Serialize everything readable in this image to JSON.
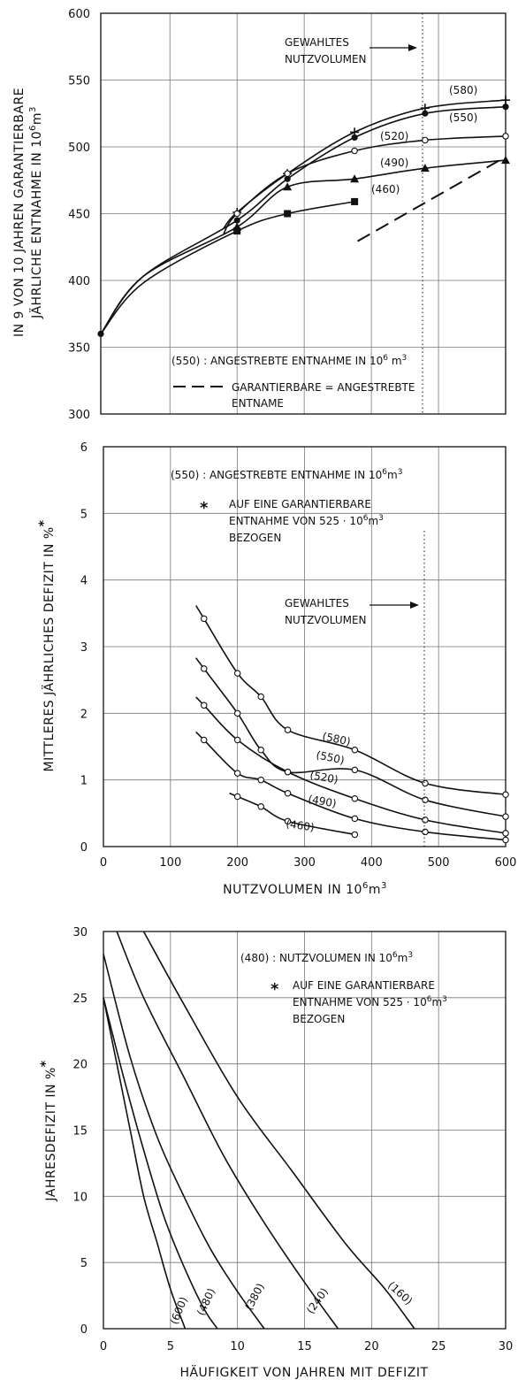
{
  "chart_data": [
    {
      "type": "line",
      "ylabel_line1": "IN 9 VON 10 JAHREN GARANTIERBARE",
      "ylabel_line2": "JÄHRLICHE ENTNAHME IN 10",
      "ylabel_sup": "6",
      "ylabel_unit": "m",
      "ylabel_unit_sup": "3",
      "xlim": [
        -3,
        600
      ],
      "ylim": [
        300,
        600
      ],
      "yticks": [
        300,
        350,
        400,
        450,
        500,
        550,
        600
      ],
      "xgrid": [
        100,
        200,
        300,
        400,
        500
      ],
      "grid": true,
      "annotation": {
        "line1": "GEWAHLTES",
        "line2": "NUTZVOLUMEN",
        "x": 480
      },
      "legend_text_1": "(550) : ANGESTREBTE ENTNAHME IN 10",
      "legend_text_1_sup": "6",
      "legend_text_1_unit": " m",
      "legend_text_1_unit_sup": "3",
      "legend_text_2_line1": "GARANTIERBARE = ANGESTREBTE",
      "legend_text_2_line2": "ENTNAME",
      "start_point": {
        "x": -3,
        "y": 360
      },
      "series": [
        {
          "name": "(580)",
          "marker": "plus",
          "x": [
            200,
            275,
            375,
            480,
            600
          ],
          "y": [
            451,
            480,
            511,
            529,
            535
          ]
        },
        {
          "name": "(550)",
          "marker": "dot",
          "x": [
            200,
            275,
            375,
            480,
            600
          ],
          "y": [
            445,
            476,
            507,
            525,
            530
          ]
        },
        {
          "name": "(520)",
          "marker": "circle",
          "x": [
            200,
            275,
            375,
            480,
            600
          ],
          "y": [
            450,
            480,
            497,
            505,
            508
          ]
        },
        {
          "name": "(490)",
          "marker": "triangle",
          "x": [
            200,
            275,
            375,
            480,
            600
          ],
          "y": [
            440,
            470,
            476,
            484,
            490
          ]
        },
        {
          "name": "(460)",
          "marker": "square",
          "x": [
            200,
            275,
            375
          ],
          "y": [
            437,
            450,
            459
          ]
        }
      ],
      "garantierbare_line": {
        "x": [
          340,
          600
        ],
        "y": [
          432,
          491
        ]
      }
    },
    {
      "type": "line",
      "ylabel": "MITTLERES JÄHRLICHES DEFIZIT IN %",
      "ylabel_star": "*",
      "xlabel": "NUTZVOLUMEN IN 10",
      "xlabel_sup": "6",
      "xlabel_unit": "m",
      "xlabel_unit_sup": "3",
      "xlim": [
        0,
        600
      ],
      "ylim": [
        0,
        6
      ],
      "xticks": [
        0,
        100,
        200,
        300,
        400,
        500,
        600
      ],
      "yticks": [
        0,
        1,
        2,
        3,
        4,
        5,
        6
      ],
      "grid": true,
      "annotation": {
        "line1": "GEWAHLTES",
        "line2": "NUTZVOLUMEN",
        "x": 480
      },
      "note_1": "(550) : ANGESTREBTE ENTNAHME IN 10",
      "note_1_sup": "6",
      "note_1_unit": "m",
      "note_1_unit_sup": "3",
      "note_star": "*",
      "note_2_line1": "AUF EINE GARANTIERBARE",
      "note_2_line2": "ENTNAHME VON 525 · 10",
      "note_2_sup": "6",
      "note_2_unit": "m",
      "note_2_unit_sup": "3",
      "note_2_line3": "BEZOGEN",
      "series": [
        {
          "name": "(580)",
          "x": [
            150,
            200,
            235,
            275,
            375,
            480,
            600
          ],
          "y": [
            3.42,
            2.6,
            2.25,
            1.75,
            1.45,
            0.95,
            0.78
          ]
        },
        {
          "name": "(550)",
          "x": [
            150,
            200,
            235,
            275,
            375,
            480,
            600
          ],
          "y": [
            2.67,
            2.0,
            1.45,
            1.12,
            1.15,
            0.7,
            0.45
          ]
        },
        {
          "name": "(520)",
          "x": [
            150,
            200,
            275,
            375,
            480,
            600
          ],
          "y": [
            2.12,
            1.6,
            1.12,
            0.72,
            0.4,
            0.2
          ]
        },
        {
          "name": "(490)",
          "x": [
            150,
            200,
            235,
            275,
            375,
            480,
            600
          ],
          "y": [
            1.6,
            1.1,
            1.0,
            0.8,
            0.42,
            0.22,
            0.1
          ]
        },
        {
          "name": "(460)",
          "x": [
            200,
            235,
            275,
            375
          ],
          "y": [
            0.75,
            0.6,
            0.38,
            0.18
          ]
        }
      ]
    },
    {
      "type": "line",
      "ylabel": "JAHRESDEFIZIT IN %",
      "ylabel_star": "*",
      "xlabel": "HÄUFIGKEIT VON JAHREN MIT DEFIZIT",
      "xlim": [
        0,
        30
      ],
      "ylim": [
        0,
        30
      ],
      "xticks": [
        0,
        5,
        10,
        15,
        20,
        25,
        30
      ],
      "yticks": [
        0,
        5,
        10,
        15,
        20,
        25,
        30
      ],
      "grid": true,
      "note_1": "(480) : NUTZVOLUMEN IN 10",
      "note_1_sup": "6",
      "note_1_unit": "m",
      "note_1_unit_sup": "3",
      "note_star": "*",
      "note_2_line1": "AUF EINE GARANTIERBARE",
      "note_2_line2": "ENTNAHME VON 525 · 10",
      "note_2_sup": "6",
      "note_2_unit": "m",
      "note_2_unit_sup": "3",
      "note_2_line3": "BEZOGEN",
      "series": [
        {
          "name": "(600)",
          "x": [
            0,
            1,
            2,
            3,
            4,
            5,
            6.1
          ],
          "y": [
            25,
            20,
            15,
            10,
            6.5,
            3,
            0
          ]
        },
        {
          "name": "(480)",
          "x": [
            0,
            1.5,
            3,
            4.5,
            6,
            7.5,
            8.5
          ],
          "y": [
            25,
            19,
            13.5,
            8.5,
            4.7,
            1.5,
            0
          ]
        },
        {
          "name": "(380)",
          "x": [
            0,
            2,
            4,
            6,
            8,
            10,
            12
          ],
          "y": [
            28.3,
            20.5,
            14.5,
            10,
            6,
            2.8,
            0
          ]
        },
        {
          "name": "(240)",
          "x": [
            1,
            3,
            6,
            9,
            12,
            15,
            17.5
          ],
          "y": [
            30,
            25,
            19,
            13,
            8,
            3.5,
            0
          ]
        },
        {
          "name": "(160)",
          "x": [
            3,
            6,
            10,
            14,
            18,
            21,
            23.2
          ],
          "y": [
            30,
            24.5,
            17.5,
            12,
            6.5,
            3,
            0
          ]
        }
      ]
    }
  ]
}
